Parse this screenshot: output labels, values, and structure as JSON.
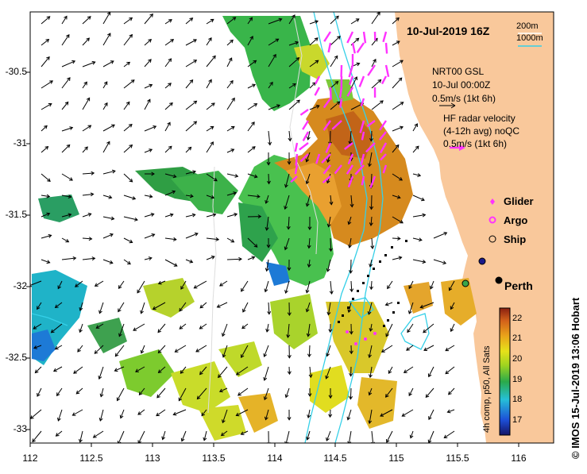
{
  "header": {
    "timestamp": "10-Jul-2019 16Z",
    "depth_200": "200m",
    "depth_1000": "1000m"
  },
  "vectors": {
    "model_title": "NRT00 GSL",
    "model_time": "10-Jul 00:00Z",
    "model_scale": "0.5m/s (1kt 6h)",
    "radar_title": "HF radar velocity",
    "radar_subtitle": "(4-12h avg) noQC",
    "radar_scale": "0.5m/s (1kt 6h)"
  },
  "legend": {
    "glider": "Glider",
    "argo": "Argo",
    "ship": "Ship"
  },
  "place": {
    "city": "Perth"
  },
  "axes": {
    "x_ticks": [
      "112",
      "112.5",
      "113",
      "113.5",
      "114",
      "114.5",
      "115",
      "115.5",
      "116"
    ],
    "y_ticks": [
      "-30.5",
      "-31",
      "-31.5",
      "-32",
      "-32.5",
      "-33"
    ]
  },
  "colorbar": {
    "label": "4h comp, p50, All Sats",
    "ticks": [
      "22",
      "21",
      "20",
      "19",
      "18",
      "17"
    ]
  },
  "credit": "© IMOS 15-Jul-2019 13:06 Hobart",
  "colors": {
    "land": "#f9c89b",
    "isobath": "#35d0e8",
    "radar": "#ff33ff",
    "sst_hot": "#d68a1e",
    "sst_cool": "#39b54a"
  }
}
